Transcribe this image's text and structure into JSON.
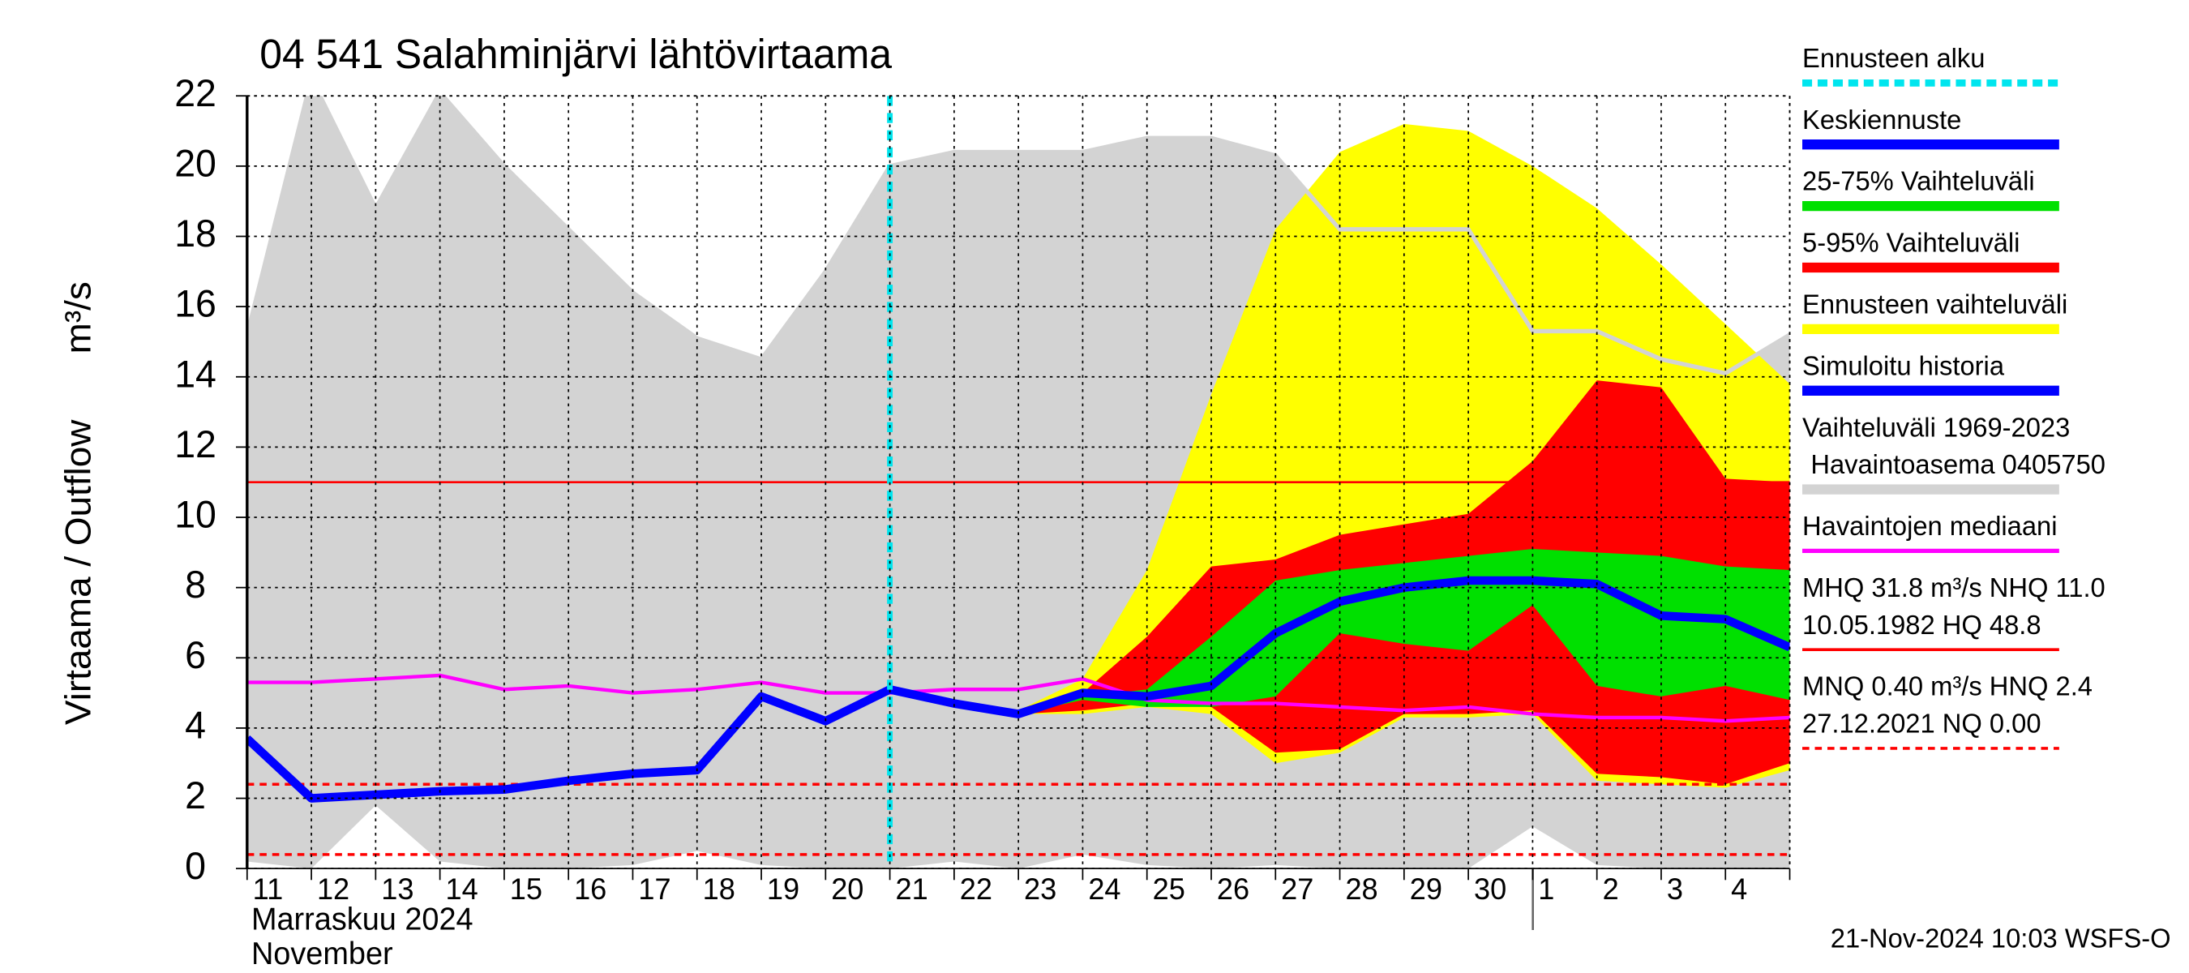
{
  "chart_data": {
    "type": "hydrograph",
    "title": "04 541 Salahminjärvi lähtövirtaama",
    "y_label": [
      "Virtaama / Outflow",
      "m³/s"
    ],
    "x_label": [
      "Marraskuu 2024",
      "November"
    ],
    "footer": "21-Nov-2024 10:03 WSFS-O",
    "categories": [
      "11",
      "12",
      "13",
      "14",
      "15",
      "16",
      "17",
      "18",
      "19",
      "20",
      "21",
      "22",
      "23",
      "24",
      "25",
      "26",
      "27",
      "28",
      "29",
      "30",
      "1",
      "2",
      "3",
      "4",
      null
    ],
    "ylim": [
      0,
      22
    ],
    "yticks": [
      0,
      2,
      4,
      6,
      8,
      10,
      12,
      14,
      16,
      18,
      20,
      22
    ],
    "grid": true,
    "series": [
      {
        "name": "Ennusteen alku",
        "color": "#00e5ee",
        "style": "marker",
        "x": "21"
      },
      {
        "name": "Keskiennuste",
        "color": "#0000ff",
        "style": "line",
        "values": [
          null,
          null,
          null,
          null,
          null,
          null,
          null,
          null,
          null,
          null,
          5.1,
          4.7,
          4.4,
          5.0,
          4.9,
          5.2,
          6.7,
          7.6,
          8.0,
          8.2,
          8.2,
          8.1,
          7.2,
          7.1,
          6.3
        ]
      },
      {
        "name": "25-75% Vaihteluväli",
        "color": "#00e000",
        "style": "band",
        "high": [
          null,
          null,
          null,
          null,
          null,
          null,
          null,
          null,
          null,
          null,
          5.1,
          4.7,
          4.4,
          4.9,
          5.1,
          6.6,
          8.2,
          8.5,
          8.7,
          8.9,
          9.1,
          9.0,
          8.9,
          8.6,
          8.5
        ],
        "low": [
          null,
          null,
          null,
          null,
          null,
          null,
          null,
          null,
          null,
          null,
          5.1,
          4.7,
          4.4,
          4.8,
          4.6,
          4.6,
          4.9,
          6.7,
          6.4,
          6.2,
          7.5,
          5.2,
          4.9,
          5.2,
          4.8
        ]
      },
      {
        "name": "5-95% Vaihteluväli",
        "color": "#ff0000",
        "style": "band",
        "high": [
          null,
          null,
          null,
          null,
          null,
          null,
          null,
          null,
          null,
          null,
          5.1,
          4.7,
          4.4,
          5.0,
          6.6,
          8.6,
          8.8,
          9.5,
          9.8,
          10.1,
          11.6,
          13.9,
          13.7,
          11.1,
          11.0
        ],
        "low": [
          null,
          null,
          null,
          null,
          null,
          null,
          null,
          null,
          null,
          null,
          5.1,
          4.7,
          4.4,
          4.5,
          4.7,
          4.6,
          3.3,
          3.4,
          4.4,
          4.4,
          4.5,
          2.7,
          2.6,
          2.4,
          3.0
        ]
      },
      {
        "name": "Ennusteen vaihteluväli",
        "color": "#ffff00",
        "style": "band",
        "high": [
          null,
          null,
          null,
          null,
          null,
          null,
          null,
          null,
          null,
          null,
          5.1,
          4.7,
          4.5,
          5.4,
          8.5,
          13.5,
          18.2,
          20.4,
          21.2,
          21.0,
          20.0,
          18.8,
          17.2,
          15.5,
          13.8
        ],
        "low": [
          null,
          null,
          null,
          null,
          null,
          null,
          null,
          null,
          null,
          null,
          5.1,
          4.7,
          4.4,
          4.4,
          4.6,
          4.4,
          3.0,
          3.3,
          4.3,
          4.3,
          4.4,
          2.5,
          2.4,
          2.3,
          2.8
        ]
      },
      {
        "name": "Simuloitu historia",
        "color": "#0000ff",
        "style": "line",
        "values": [
          3.7,
          2.0,
          2.1,
          2.2,
          2.25,
          2.5,
          2.7,
          2.8,
          4.9,
          4.2,
          5.1,
          null,
          null,
          null,
          null,
          null,
          null,
          null,
          null,
          null,
          null,
          null,
          null,
          null,
          null
        ]
      },
      {
        "name": [
          "Vaihteluväli 1969-2023",
          "Havaintoasema 0405750"
        ],
        "color": "#d3d3d3",
        "style": "range",
        "high": [
          15.2,
          22.5,
          18.8,
          22.1,
          20.0,
          18.2,
          16.4,
          15.1,
          14.5,
          17.0,
          20.0,
          20.4,
          20.4,
          20.4,
          20.8,
          20.8,
          20.3,
          18.2,
          18.2,
          18.2,
          15.3,
          15.3,
          14.5,
          14.1,
          15.2
        ],
        "low": [
          0.2,
          0,
          1.8,
          0.2,
          0,
          0,
          0.1,
          0.5,
          0.1,
          0,
          0,
          0.2,
          0,
          0.4,
          0.1,
          0,
          0.1,
          0,
          0,
          0,
          1.2,
          0.1,
          0,
          0,
          0
        ]
      },
      {
        "name": "Havaintojen mediaani",
        "color": "#ff00ff",
        "style": "thin-line",
        "values": [
          5.3,
          5.3,
          5.4,
          5.5,
          5.1,
          5.2,
          5.0,
          5.1,
          5.3,
          5.0,
          5.0,
          5.1,
          5.1,
          5.4,
          4.8,
          4.7,
          4.7,
          4.6,
          4.5,
          4.6,
          4.4,
          4.3,
          4.3,
          4.2,
          4.3
        ]
      },
      {
        "name": [
          "MHQ 31.8 m³/s NHQ 11.0",
          "10.05.1982 HQ 48.8"
        ],
        "color": "#ff0000",
        "style": "ref",
        "levels": [
          11.0
        ]
      },
      {
        "name": [
          "MNQ 0.40 m³/s HNQ  2.4",
          "27.12.2021 NQ 0.00"
        ],
        "color": "#ff0000",
        "style": "dashed-ref",
        "levels": [
          0.4,
          2.4
        ]
      }
    ]
  }
}
